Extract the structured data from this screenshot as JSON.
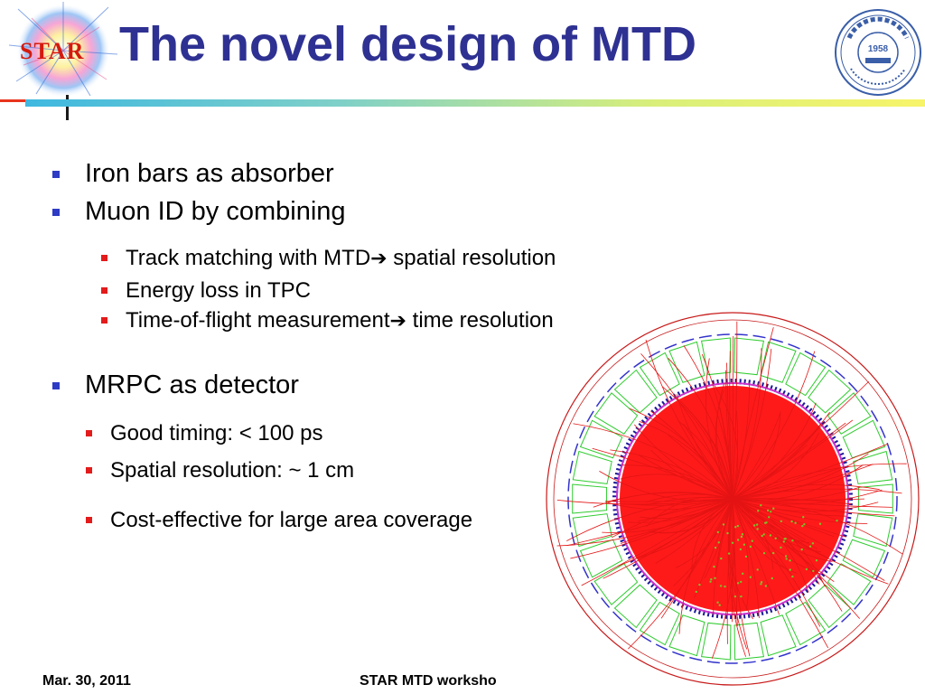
{
  "slide": {
    "title": "The novel design of MTD",
    "logo_text": "STAR",
    "university_logo": {
      "year": "1958",
      "ring_text": "University of Science and Technology of China"
    },
    "bullets": [
      {
        "text": "Iron bars as absorber"
      },
      {
        "text": "Muon ID by combining",
        "sub": [
          {
            "text": "Track matching with MTD",
            "arrow": "➔",
            "after": " spatial resolution"
          },
          {
            "text": "Energy loss in TPC"
          },
          {
            "text": "Time-of-flight measurement",
            "arrow": "➔",
            "after": " time resolution"
          }
        ]
      },
      {
        "text": "MRPC as detector",
        "sub": [
          {
            "text": "Good timing: < 100 ps"
          },
          {
            "text": "Spatial resolution: ~ 1 cm"
          },
          {
            "text": "Cost-effective for large area coverage"
          }
        ]
      }
    ],
    "footer": {
      "date": "Mar. 30, 2011",
      "center": "STAR MTD worksho"
    },
    "colors": {
      "title": "#2e3192",
      "bullet_l1": "#2e3bc4",
      "bullet_l2": "#e31b1b"
    },
    "icons": [
      "star-logo",
      "university-seal-icon",
      "arrow-right-icon",
      "event-display-image"
    ]
  }
}
